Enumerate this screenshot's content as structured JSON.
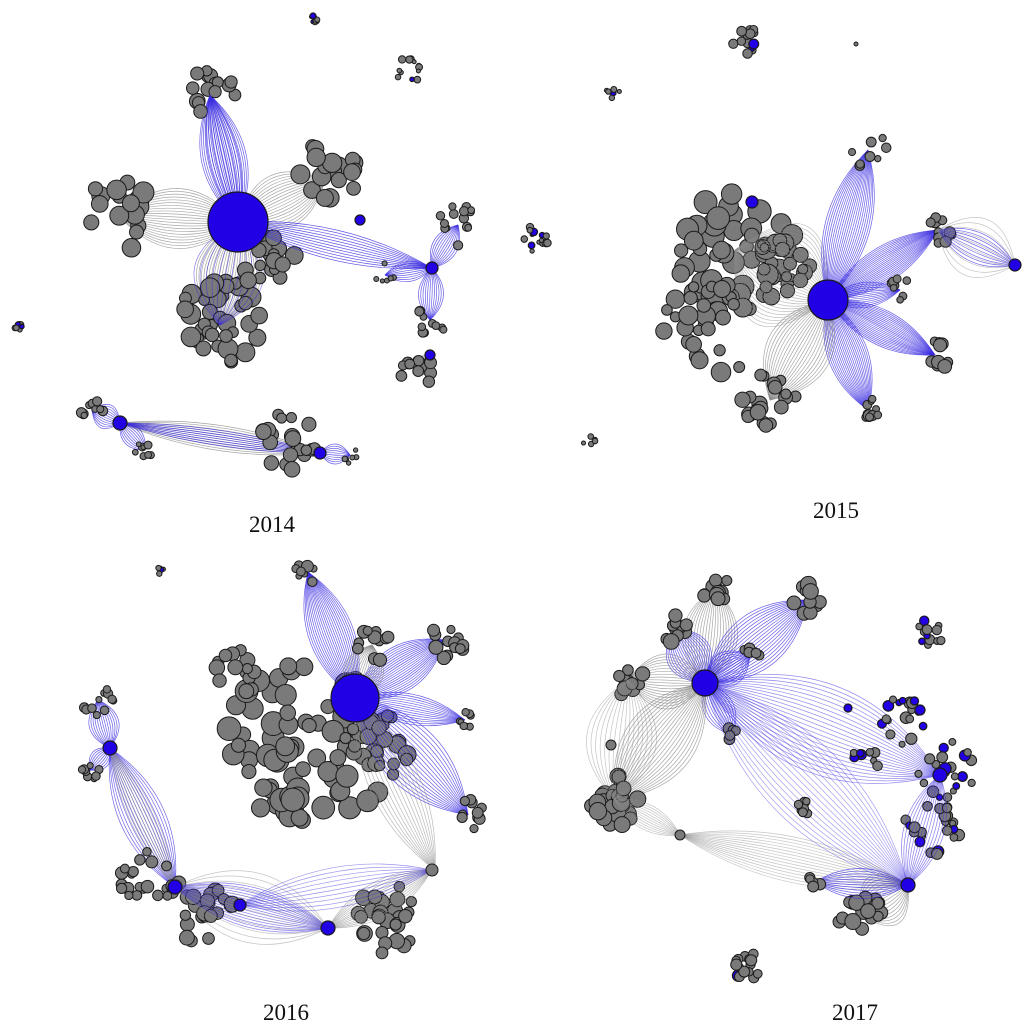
{
  "figure": {
    "panels": [
      {
        "id": "y2014",
        "label": "2014"
      },
      {
        "id": "y2015",
        "label": "2015"
      },
      {
        "id": "y2016",
        "label": "2016"
      },
      {
        "id": "y2017",
        "label": "2017"
      }
    ]
  },
  "colors": {
    "hub_node": "#2200e6",
    "gray_node": "#7a7a7a",
    "node_stroke": "#1a1a1a",
    "blue_edge": "#3a2ce0",
    "gray_edge": "#8c8c8c",
    "background": "#ffffff"
  }
}
